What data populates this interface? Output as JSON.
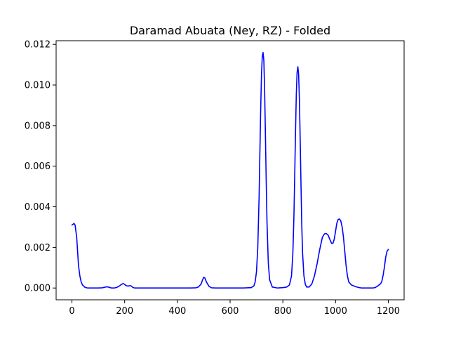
{
  "chart_data": {
    "type": "line",
    "title": "Daramad Abuata (Ney, RZ) - Folded",
    "xlabel": "",
    "ylabel": "",
    "xlim": [
      -60,
      1260
    ],
    "ylim": [
      -0.00058,
      0.01218
    ],
    "xticks": [
      0,
      200,
      400,
      600,
      800,
      1000,
      1200
    ],
    "yticks": [
      0.0,
      0.002,
      0.004,
      0.006,
      0.008,
      0.01,
      0.012
    ],
    "xtick_labels": [
      "0",
      "200",
      "400",
      "600",
      "800",
      "1000",
      "1200"
    ],
    "ytick_labels": [
      "0.000",
      "0.002",
      "0.004",
      "0.006",
      "0.008",
      "0.010",
      "0.012"
    ],
    "grid": false,
    "series": [
      {
        "color": "#0000ff",
        "x": [
          0,
          8,
          12,
          18,
          22,
          25,
          30,
          35,
          40,
          50,
          60,
          80,
          100,
          115,
          125,
          133,
          140,
          150,
          160,
          170,
          180,
          188,
          195,
          200,
          205,
          210,
          215,
          220,
          225,
          230,
          235,
          240,
          260,
          300,
          350,
          400,
          450,
          470,
          480,
          490,
          495,
          500,
          505,
          510,
          520,
          530,
          545,
          560,
          600,
          650,
          680,
          690,
          695,
          700,
          705,
          710,
          713,
          716,
          719,
          722,
          725,
          728,
          731,
          734,
          737,
          740,
          745,
          750,
          760,
          780,
          800,
          815,
          825,
          833,
          838,
          842,
          845,
          848,
          851,
          854,
          857,
          860,
          863,
          866,
          869,
          872,
          875,
          880,
          885,
          890,
          900,
          910,
          920,
          930,
          940,
          950,
          958,
          965,
          972,
          978,
          985,
          990,
          995,
          1000,
          1005,
          1010,
          1015,
          1020,
          1025,
          1030,
          1035,
          1040,
          1045,
          1050,
          1060,
          1070,
          1080,
          1090,
          1100,
          1120,
          1140,
          1150,
          1160,
          1170,
          1175,
          1180,
          1185,
          1190,
          1195,
          1200
        ],
        "y": [
          0.0031,
          0.00318,
          0.0031,
          0.0025,
          0.0017,
          0.0011,
          0.0006,
          0.0003,
          0.00015,
          3e-05,
          0.0,
          0.0,
          0.0,
          1e-05,
          4e-05,
          6e-05,
          4e-05,
          0.0,
          0.0,
          3e-05,
          0.0001,
          0.00018,
          0.00022,
          0.00018,
          0.00012,
          0.0001,
          0.0001,
          0.00012,
          0.0001,
          4e-05,
          1e-05,
          0.0,
          0.0,
          0.0,
          0.0,
          0.0,
          0.0,
          1e-05,
          5e-05,
          0.0002,
          0.00038,
          0.00053,
          0.00048,
          0.0003,
          8e-05,
          1e-05,
          0.0,
          0.0,
          0.0,
          0.0,
          2e-05,
          0.0001,
          0.0003,
          0.0008,
          0.002,
          0.0045,
          0.0067,
          0.0088,
          0.0105,
          0.0114,
          0.0116,
          0.0112,
          0.0097,
          0.0075,
          0.0052,
          0.0032,
          0.0012,
          0.0004,
          5e-05,
          0.0,
          2e-05,
          5e-05,
          0.00015,
          0.0006,
          0.0017,
          0.0035,
          0.0055,
          0.0076,
          0.0095,
          0.0106,
          0.0109,
          0.0105,
          0.0092,
          0.0072,
          0.005,
          0.003,
          0.0017,
          0.0006,
          0.0002,
          5e-05,
          5e-05,
          0.0002,
          0.0006,
          0.0012,
          0.0019,
          0.0025,
          0.00267,
          0.00268,
          0.0026,
          0.0024,
          0.0022,
          0.0022,
          0.0024,
          0.0028,
          0.0032,
          0.00338,
          0.0034,
          0.0033,
          0.003,
          0.0025,
          0.0018,
          0.0011,
          0.0006,
          0.0003,
          0.00015,
          0.0001,
          5e-05,
          2e-05,
          0.0,
          0.0,
          0.0,
          2e-05,
          0.0001,
          0.0002,
          0.0003,
          0.0006,
          0.001,
          0.0015,
          0.0018,
          0.0019
        ]
      }
    ]
  }
}
